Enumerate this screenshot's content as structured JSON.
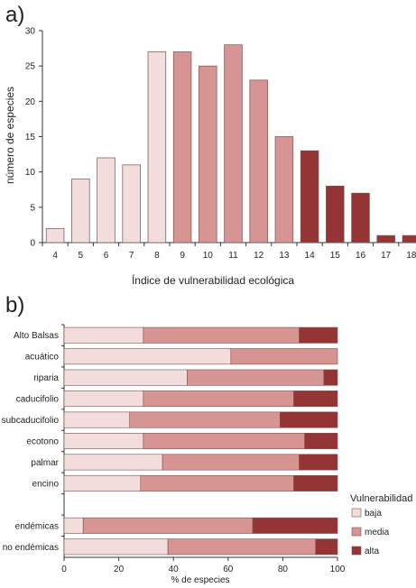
{
  "colors": {
    "baja": "#f3dcdc",
    "media": "#d69493",
    "alta": "#953434",
    "stroke": "#7a5050"
  },
  "chart_data": [
    {
      "type": "bar",
      "panel_label": "a)",
      "title": "",
      "xlabel": "Índice de vulnerabilidad ecológica",
      "ylabel": "número de especies",
      "ylim": [
        0,
        30
      ],
      "yticks": [
        "0",
        "5",
        "10",
        "15",
        "20",
        "25",
        "30"
      ],
      "categories": [
        "4",
        "5",
        "6",
        "7",
        "8",
        "9",
        "10",
        "11",
        "12",
        "13",
        "14",
        "15",
        "16",
        "17",
        "18"
      ],
      "values": [
        2,
        9,
        12,
        11,
        27,
        27,
        25,
        28,
        23,
        15,
        13,
        8,
        7,
        1,
        1
      ],
      "vulnerability_class": [
        "baja",
        "baja",
        "baja",
        "baja",
        "baja",
        "media",
        "media",
        "media",
        "media",
        "media",
        "alta",
        "alta",
        "alta",
        "alta",
        "alta"
      ]
    },
    {
      "type": "bar",
      "orientation": "horizontal",
      "stacked": true,
      "panel_label": "b)",
      "title": "",
      "xlabel": "% de especies",
      "xlim": [
        0,
        100
      ],
      "xticks": [
        "0",
        "20",
        "40",
        "60",
        "80",
        "100"
      ],
      "categories": [
        "Alto Balsas",
        "acuático",
        "riparia",
        "caducifolio",
        "subcaducifolio",
        "ecotono",
        "palmar",
        "encino",
        "",
        "endémicas",
        "no endémicas"
      ],
      "series": [
        {
          "name": "baja",
          "values": [
            29,
            61,
            45,
            29,
            24,
            29,
            36,
            28,
            null,
            7,
            38
          ]
        },
        {
          "name": "media",
          "values": [
            57,
            39,
            50,
            55,
            55,
            59,
            50,
            56,
            null,
            62,
            54
          ]
        },
        {
          "name": "alta",
          "values": [
            14,
            0,
            5,
            16,
            21,
            12,
            14,
            16,
            null,
            31,
            8
          ]
        }
      ],
      "legend": {
        "title": "Vulnerabilidad",
        "position": "right",
        "items": [
          "baja",
          "media",
          "alta"
        ]
      }
    }
  ]
}
